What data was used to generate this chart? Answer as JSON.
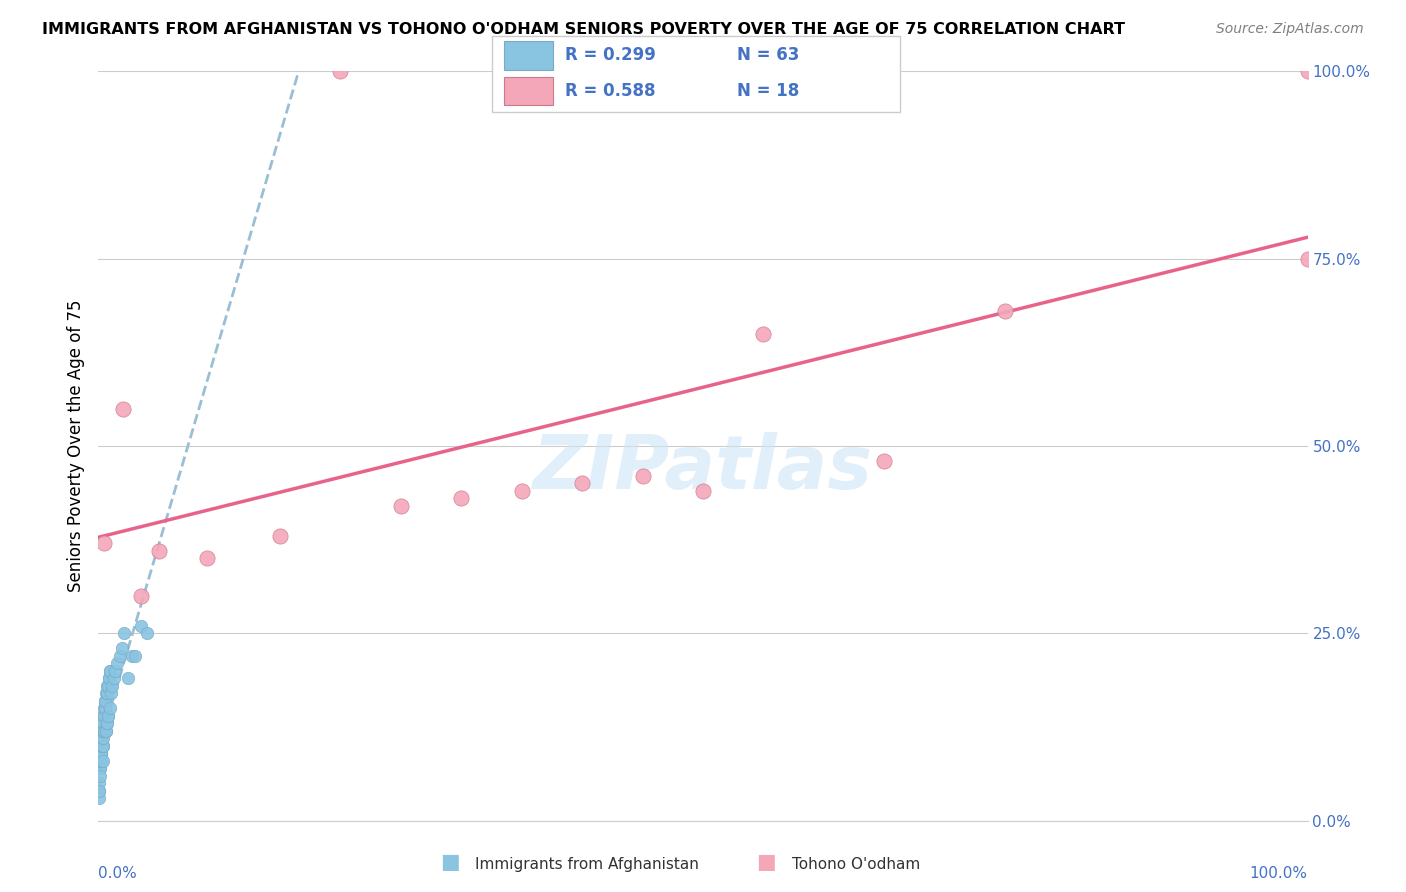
{
  "title": "IMMIGRANTS FROM AFGHANISTAN VS TOHONO O'ODHAM SENIORS POVERTY OVER THE AGE OF 75 CORRELATION CHART",
  "source": "Source: ZipAtlas.com",
  "ylabel": "Seniors Poverty Over the Age of 75",
  "legend_r1": "R = 0.299",
  "legend_n1": "N = 63",
  "legend_r2": "R = 0.588",
  "legend_n2": "N = 18",
  "blue_color": "#89C4E1",
  "pink_color": "#F4A7B9",
  "blue_line_color": "#9ABFD4",
  "pink_line_color": "#E8638A",
  "watermark": "ZIPatlas",
  "afg_x": [
    0.05,
    0.08,
    0.1,
    0.12,
    0.14,
    0.15,
    0.16,
    0.18,
    0.19,
    0.2,
    0.21,
    0.22,
    0.24,
    0.25,
    0.26,
    0.28,
    0.29,
    0.3,
    0.31,
    0.32,
    0.34,
    0.35,
    0.36,
    0.38,
    0.39,
    0.4,
    0.42,
    0.45,
    0.48,
    0.5,
    0.52,
    0.55,
    0.58,
    0.6,
    0.62,
    0.65,
    0.68,
    0.7,
    0.72,
    0.75,
    0.78,
    0.8,
    0.82,
    0.85,
    0.88,
    0.92,
    0.95,
    0.98,
    1.05,
    1.15,
    1.25,
    1.35,
    1.55,
    1.75,
    1.95,
    2.15,
    2.45,
    2.75,
    3.0,
    3.5,
    4.0,
    0.04,
    0.06
  ],
  "afg_y": [
    4,
    5,
    8,
    7,
    7,
    6,
    8,
    8,
    9,
    10,
    10,
    9,
    11,
    9,
    12,
    10,
    13,
    12,
    14,
    11,
    10,
    10,
    11,
    12,
    12,
    8,
    13,
    12,
    14,
    15,
    15,
    16,
    16,
    12,
    12,
    17,
    17,
    13,
    13,
    18,
    18,
    14,
    14,
    19,
    19,
    15,
    20,
    20,
    17,
    18,
    19,
    20,
    21,
    22,
    23,
    25,
    19,
    22,
    22,
    26,
    25,
    3,
    4
  ],
  "toh_x": [
    0.5,
    2.0,
    3.5,
    5.0,
    9.0,
    15.0,
    20.0,
    25.0,
    30.0,
    35.0,
    40.0,
    45.0,
    50.0,
    55.0,
    65.0,
    75.0,
    100.0,
    100.0
  ],
  "toh_y": [
    37,
    55,
    30,
    36,
    35,
    38,
    100,
    42,
    43,
    44,
    45,
    46,
    44,
    65,
    48,
    68,
    75,
    100
  ]
}
